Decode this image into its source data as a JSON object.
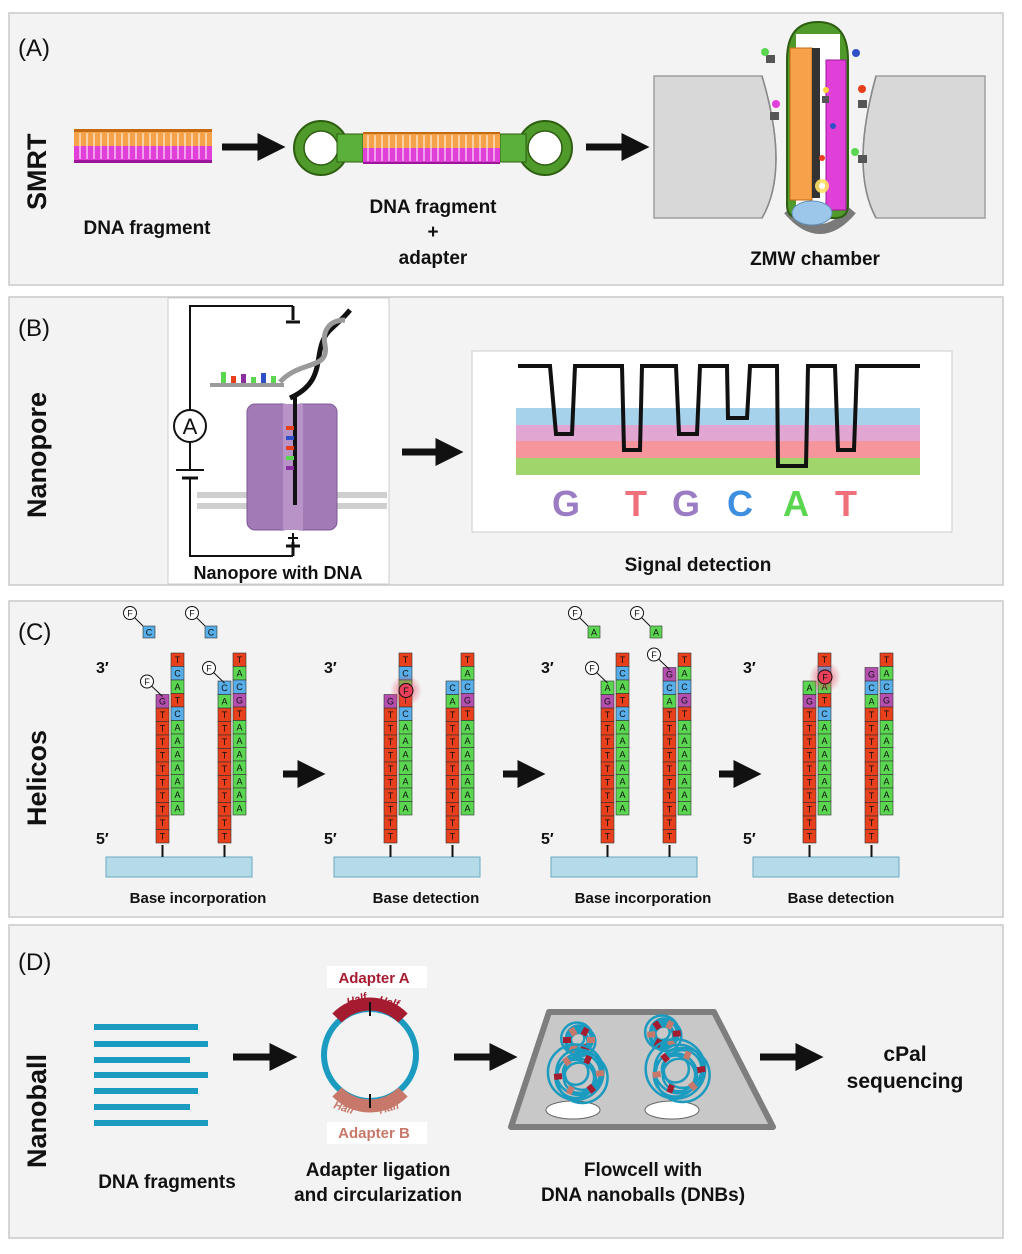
{
  "panels": [
    {
      "letter": "(A)",
      "name": "SMRT",
      "labels": [
        "DNA fragment",
        "DNA fragment",
        "+",
        "adapter",
        "ZMW chamber"
      ]
    },
    {
      "letter": "(B)",
      "name": "Nanopore",
      "labels": [
        "Nanopore with DNA",
        "Signal detection"
      ],
      "ammeter": "A",
      "signal_bases": [
        "G",
        "T",
        "G",
        "C",
        "A",
        "T"
      ]
    },
    {
      "letter": "(C)",
      "name": "Helicos",
      "labels": [
        "Base incorporation",
        "Base detection",
        "Base incorporation",
        "Base detection"
      ],
      "end3": "3′",
      "end5": "5′",
      "fluor": "F"
    },
    {
      "letter": "(D)",
      "name": "Nanoball",
      "labels": [
        "DNA fragments",
        "Adapter ligation",
        "and circularization",
        "Flowcell with",
        "DNA nanoballs (DNBs)",
        "cPal",
        "sequencing"
      ],
      "adapter_a": "Adapter A",
      "adapter_b": "Adapter B",
      "half": "Half"
    }
  ],
  "colors": {
    "T": "#e8401c",
    "A": "#5bd651",
    "C": "#57aee8",
    "G": "#b44fb0",
    "orange": "#f5a24b",
    "magenta": "#e040d8",
    "green_dark": "#3a7a1a",
    "teal": "#1a9bbf",
    "adapter_a": "#a51c30",
    "adapter_b": "#c8786a"
  }
}
